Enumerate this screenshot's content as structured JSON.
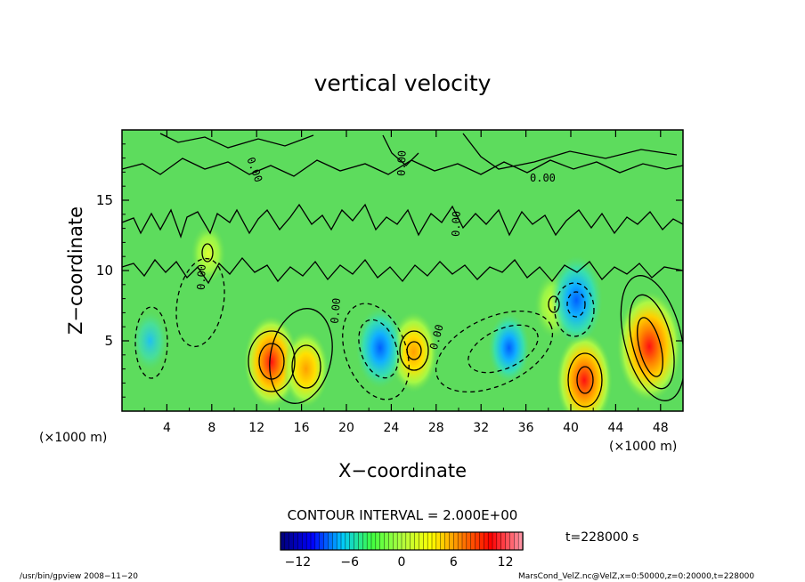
{
  "chart_data": {
    "type": "heatmap",
    "title": "vertical velocity",
    "xlabel": "X−coordinate",
    "ylabel": "Z−coordinate",
    "x_unit_left": "(×1000 m)",
    "x_unit_right": "(×1000 m)",
    "xlim": [
      0,
      50
    ],
    "ylim": [
      0,
      20
    ],
    "xticks": [
      "4",
      "8",
      "12",
      "16",
      "20",
      "24",
      "28",
      "32",
      "36",
      "40",
      "44",
      "48"
    ],
    "xtick_values": [
      4,
      8,
      12,
      16,
      20,
      24,
      28,
      32,
      36,
      40,
      44,
      48
    ],
    "yticks": [
      "5",
      "10",
      "15"
    ],
    "ytick_values": [
      5,
      10,
      15
    ],
    "contour_interval_text": "CONTOUR INTERVAL = 2.000E+00",
    "contour_label": "0.00",
    "time_label": "t=228000 s",
    "colorbar": {
      "vmin": -14,
      "vmax": 14,
      "ticks": [
        "−12",
        "−6",
        "0",
        "6",
        "12"
      ],
      "tick_values": [
        -12,
        -6,
        0,
        6,
        12
      ]
    },
    "features": [
      {
        "x": 13.3,
        "z": 3.5,
        "w": 8.6,
        "kind": "updraft"
      },
      {
        "x": 16.4,
        "z": 3.0,
        "w": 6.5,
        "kind": "updraft"
      },
      {
        "x": 26.0,
        "z": 4.2,
        "w": 7.0,
        "kind": "updraft"
      },
      {
        "x": 41.2,
        "z": 2.2,
        "w": 9.0,
        "kind": "updraft"
      },
      {
        "x": 47.0,
        "z": 4.6,
        "w": 11.0,
        "kind": "updraft"
      },
      {
        "x": 7.7,
        "z": 11.2,
        "w": 4.0,
        "kind": "updraft"
      },
      {
        "x": 38.5,
        "z": 7.5,
        "w": 5.0,
        "kind": "updraft"
      },
      {
        "x": 23.0,
        "z": 4.5,
        "w": -7.0,
        "kind": "downdraft"
      },
      {
        "x": 34.5,
        "z": 4.5,
        "w": -5.5,
        "kind": "downdraft"
      },
      {
        "x": 40.5,
        "z": 7.9,
        "w": -8.0,
        "kind": "downdraft"
      },
      {
        "x": 2.5,
        "z": 5.0,
        "w": -4.0,
        "kind": "downdraft"
      }
    ]
  },
  "footer": {
    "left": "/usr/bin/gpview   2008−11−20",
    "right": "MarsCond_VelZ.nc@VelZ,x=0:50000,z=0:20000,t=228000"
  },
  "colors": {
    "colormap": [
      "#000080",
      "#0000ff",
      "#00c8ff",
      "#40ff40",
      "#b0ff40",
      "#ffff00",
      "#ff8000",
      "#ff0000",
      "#ff90a0"
    ],
    "background": "#5ddc5d",
    "contour": "#000000"
  }
}
